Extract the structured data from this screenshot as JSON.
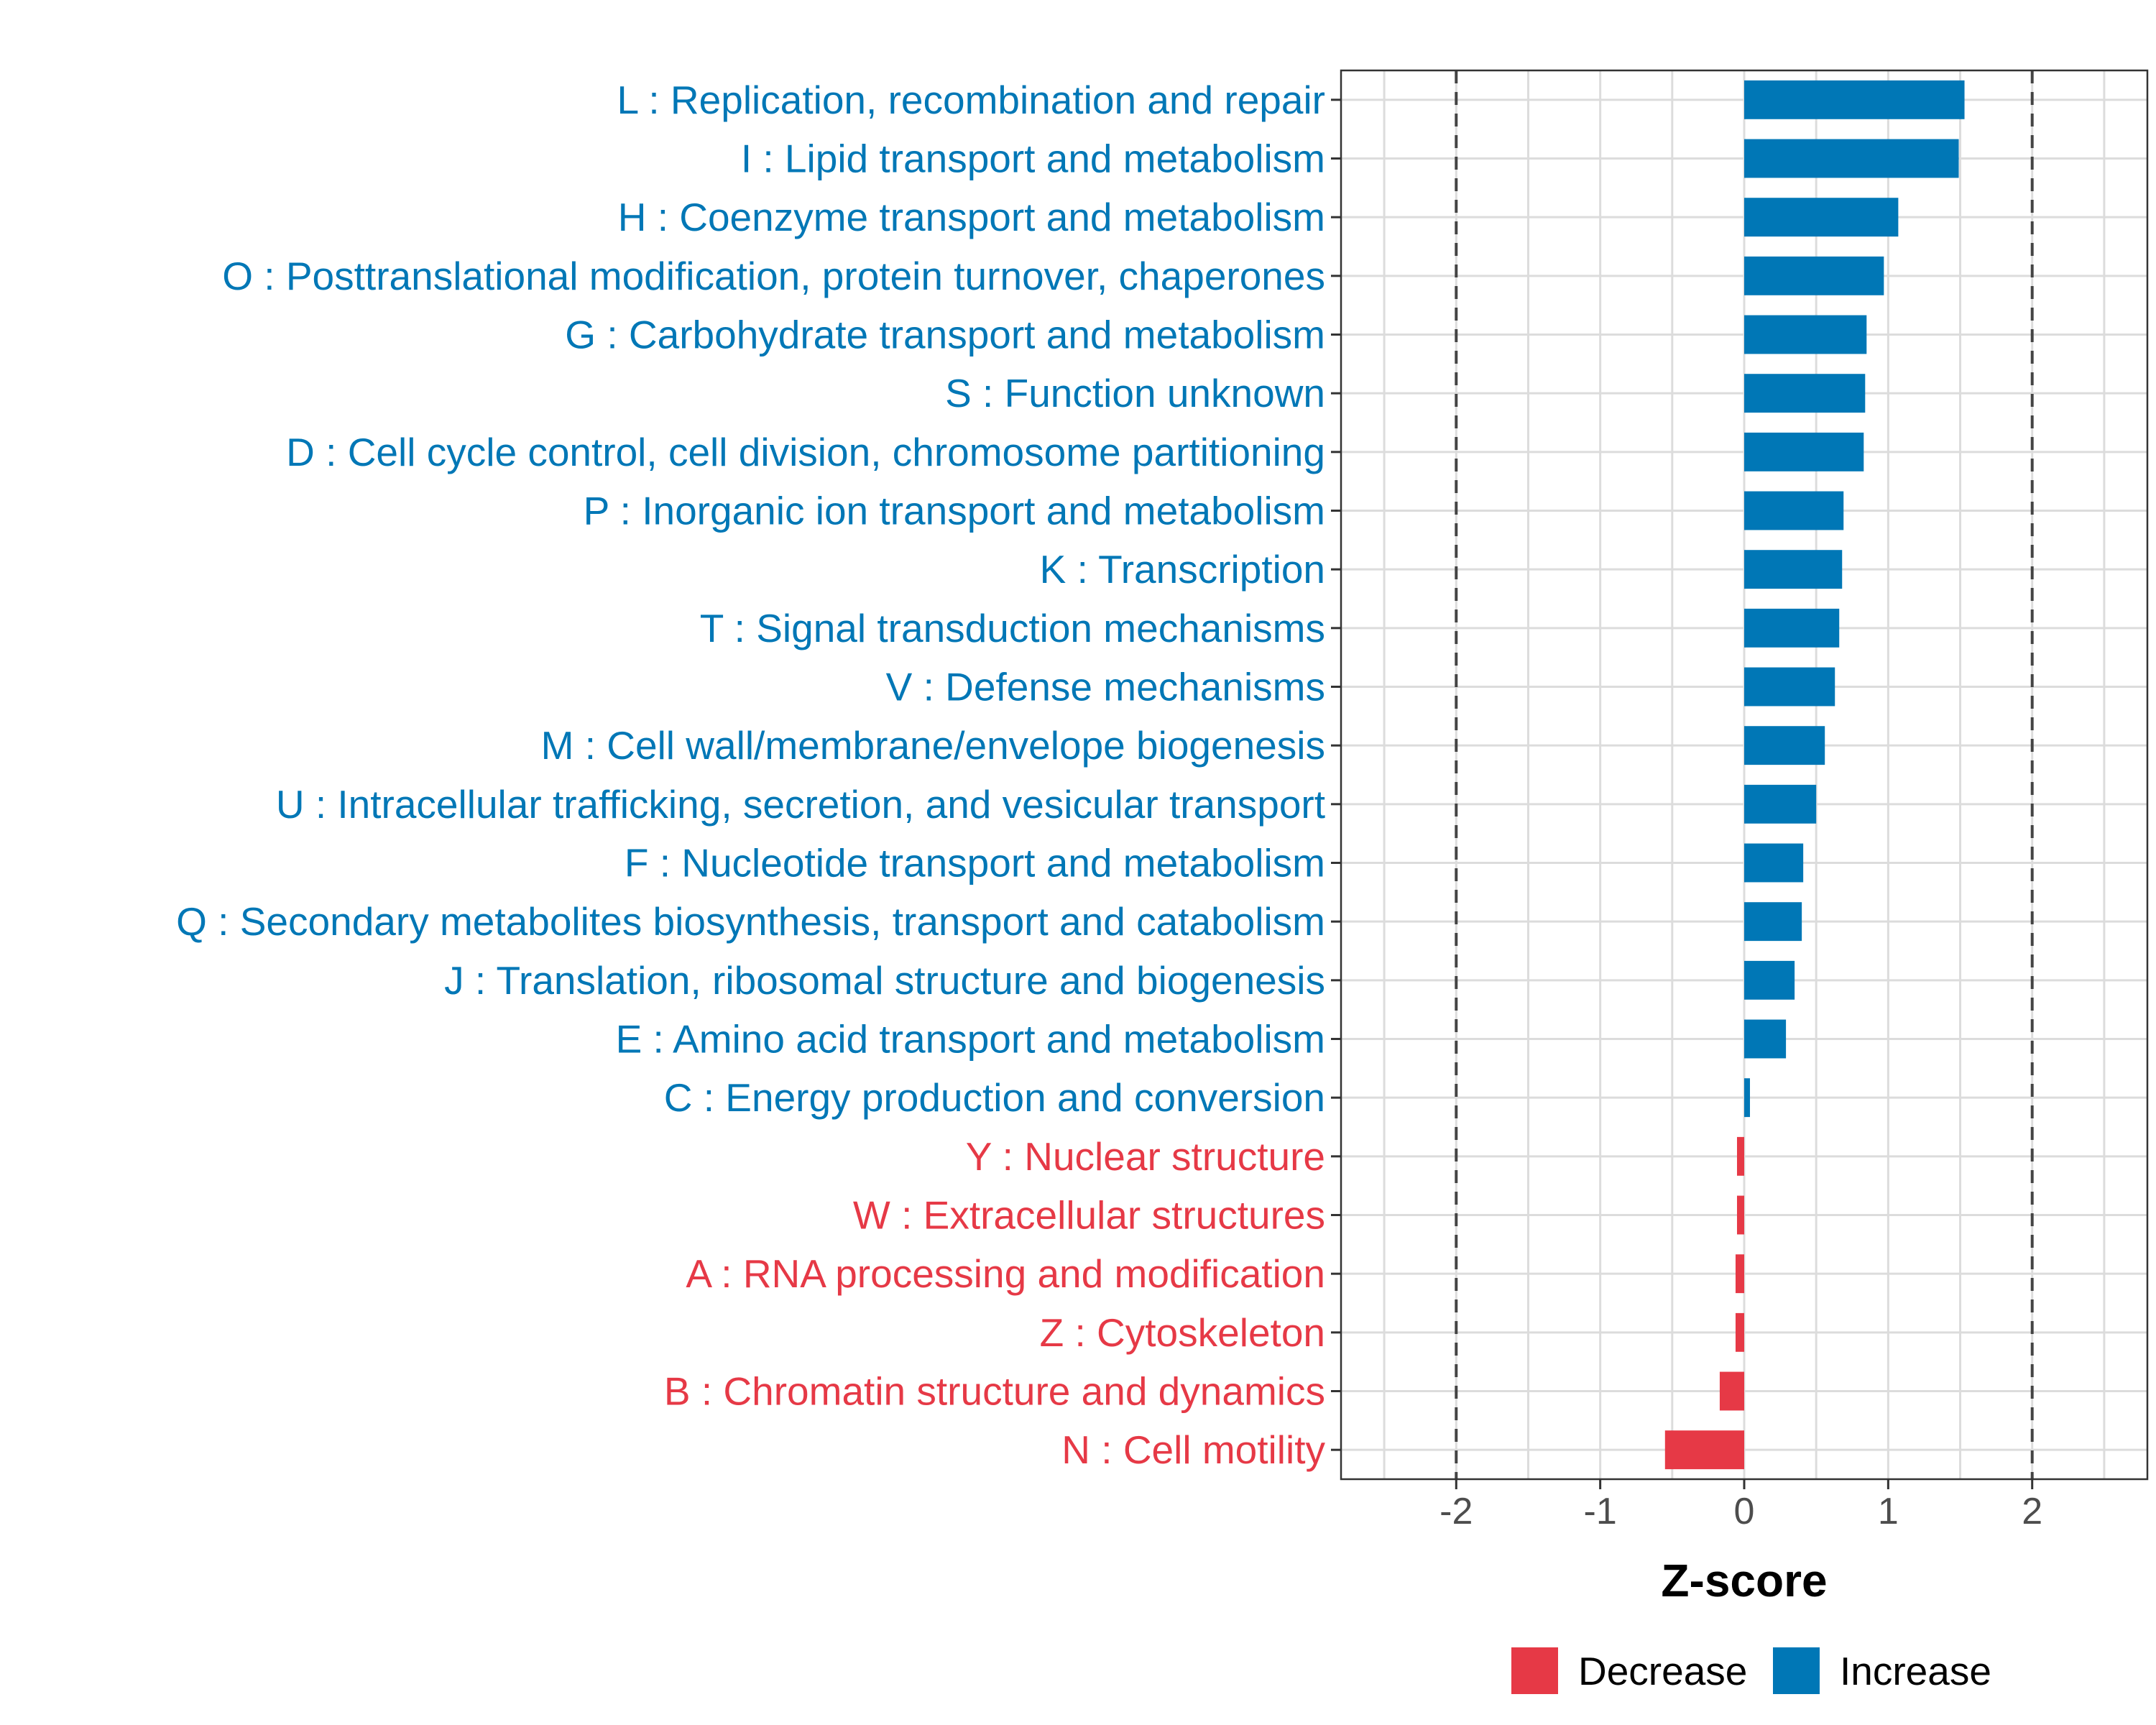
{
  "chart_data": {
    "type": "bar",
    "orientation": "horizontal",
    "xlabel": "Z-score",
    "xlim": [
      -2.8,
      2.8
    ],
    "xticks": [
      -2,
      -1,
      0,
      1,
      2
    ],
    "xtick_labels": [
      "-2",
      "-1",
      "0",
      "1",
      "2"
    ],
    "reference_lines": [
      -2,
      2
    ],
    "grid": true,
    "legend_position": "bottom",
    "legend": [
      {
        "name": "Decrease",
        "color": "#E63946"
      },
      {
        "name": "Increase",
        "color": "#0077B6"
      }
    ],
    "categories": [
      "L : Replication, recombination and repair",
      "I : Lipid transport and metabolism",
      "H : Coenzyme transport and metabolism",
      "O : Posttranslational modification, protein turnover, chaperones",
      "G : Carbohydrate transport and metabolism",
      "S : Function unknown",
      "D : Cell cycle control, cell division, chromosome partitioning",
      "P : Inorganic ion transport and metabolism",
      "K : Transcription",
      "T : Signal transduction mechanisms",
      "V : Defense mechanisms",
      "M : Cell wall/membrane/envelope biogenesis",
      "U : Intracellular trafficking, secretion, and vesicular transport",
      "F : Nucleotide transport and metabolism",
      "Q : Secondary metabolites biosynthesis, transport and catabolism",
      "J : Translation, ribosomal structure and biogenesis",
      "E : Amino acid transport and metabolism",
      "C : Energy production and conversion",
      "Y : Nuclear structure",
      "W : Extracellular structures",
      "A : RNA processing and modification",
      "Z : Cytoskeleton",
      "B : Chromatin structure and dynamics",
      "N : Cell motility"
    ],
    "values": [
      1.53,
      1.49,
      1.07,
      0.97,
      0.85,
      0.84,
      0.83,
      0.69,
      0.68,
      0.66,
      0.63,
      0.56,
      0.5,
      0.41,
      0.4,
      0.35,
      0.29,
      0.04,
      -0.05,
      -0.05,
      -0.06,
      -0.06,
      -0.17,
      -0.55
    ],
    "groups": [
      "Increase",
      "Increase",
      "Increase",
      "Increase",
      "Increase",
      "Increase",
      "Increase",
      "Increase",
      "Increase",
      "Increase",
      "Increase",
      "Increase",
      "Increase",
      "Increase",
      "Increase",
      "Increase",
      "Increase",
      "Increase",
      "Decrease",
      "Decrease",
      "Decrease",
      "Decrease",
      "Decrease",
      "Decrease"
    ]
  }
}
